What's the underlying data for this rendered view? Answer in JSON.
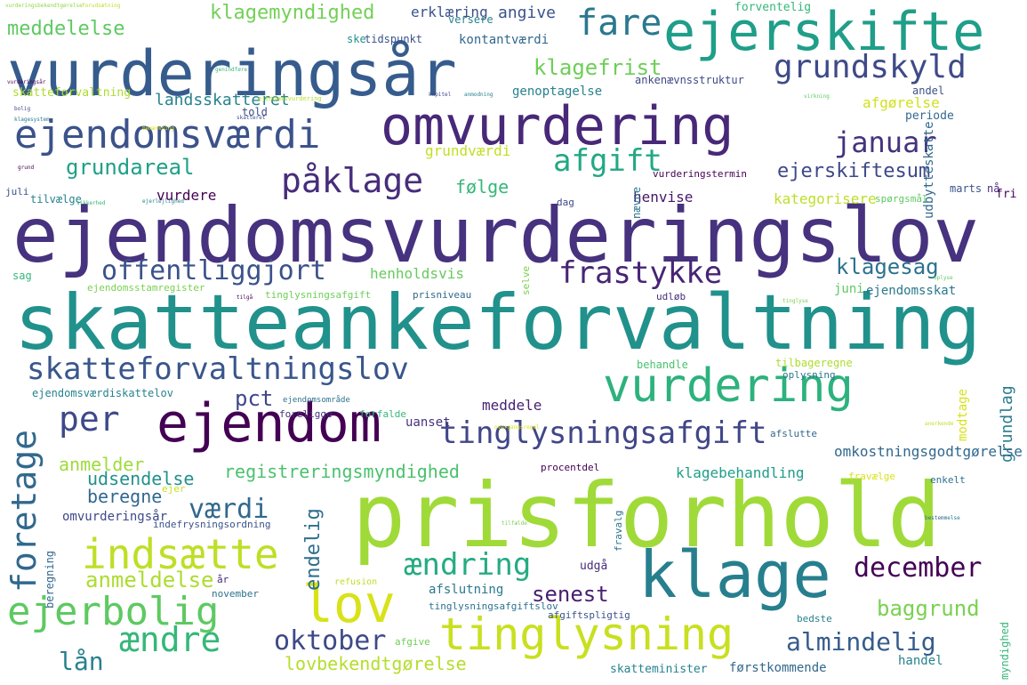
{
  "colors": {
    "background": "#ffffff",
    "palette": [
      "#440154",
      "#482878",
      "#3e4989",
      "#31688e",
      "#26828e",
      "#1f9e89",
      "#35b779",
      "#6ece58",
      "#b5de2b",
      "#fde725"
    ]
  },
  "words": [
    {
      "text": "ejendomsvurderingslov",
      "color": "#46327e"
    },
    {
      "text": "skatteankeforvaltning",
      "color": "#21918c"
    },
    {
      "text": "prisforhold",
      "color": "#a0da39"
    },
    {
      "text": "vurderingsår",
      "color": "#365c8d"
    },
    {
      "text": "omvurdering",
      "color": "#482878"
    },
    {
      "text": "ejerskifte",
      "color": "#1f9e89"
    },
    {
      "text": "ejendom",
      "color": "#440154"
    },
    {
      "text": "klage",
      "color": "#277f8e"
    },
    {
      "text": "vurdering",
      "color": "#2db27d"
    },
    {
      "text": "tinglysning",
      "color": "#c8e020"
    },
    {
      "text": "lov",
      "color": "#d8e219"
    },
    {
      "text": "ejendomsværdi",
      "color": "#3b528b"
    },
    {
      "text": "skatteforvaltningslov",
      "color": "#39568c"
    },
    {
      "text": "tinglysningsafgift",
      "color": "#404688"
    },
    {
      "text": "indsætte",
      "color": "#bddf26"
    },
    {
      "text": "ejerbolig",
      "color": "#5ec962"
    },
    {
      "text": "fare",
      "color": "#2a788e"
    },
    {
      "text": "grundskyld",
      "color": "#3e4a89"
    },
    {
      "text": "påklage",
      "color": "#472d7b"
    },
    {
      "text": "afgift",
      "color": "#22a884"
    },
    {
      "text": "januar",
      "color": "#46337e"
    },
    {
      "text": "frastykke",
      "color": "#482475"
    },
    {
      "text": "offentliggjort",
      "color": "#3b528b"
    },
    {
      "text": "foretage",
      "color": "#31688e"
    },
    {
      "text": "per",
      "color": "#3e4989"
    },
    {
      "text": "ændring",
      "color": "#25ab82"
    },
    {
      "text": "december",
      "color": "#440154"
    },
    {
      "text": "værdi",
      "color": "#31688e"
    },
    {
      "text": "oktober",
      "color": "#3e4989"
    },
    {
      "text": "almindelig",
      "color": "#365c8d"
    },
    {
      "text": "lån",
      "color": "#26828e"
    },
    {
      "text": "ændre",
      "color": "#35b779"
    },
    {
      "text": "baggrund",
      "color": "#7ad151"
    },
    {
      "text": "senest",
      "color": "#481f70"
    },
    {
      "text": "meddelelse",
      "color": "#5ec962"
    },
    {
      "text": "klagemyndighed",
      "color": "#73d056"
    },
    {
      "text": "klagefrist",
      "color": "#6ece58"
    },
    {
      "text": "grundareal",
      "color": "#1fa088"
    },
    {
      "text": "ejerskiftesum",
      "color": "#3e4989"
    },
    {
      "text": "klagesag",
      "color": "#2c728e"
    },
    {
      "text": "anmeldelse",
      "color": "#addc30"
    },
    {
      "text": "følge",
      "color": "#35b779"
    },
    {
      "text": "landsskatteret",
      "color": "#26828e"
    },
    {
      "text": "pct",
      "color": "#404688"
    },
    {
      "text": "registreringsmyndighed",
      "color": "#4ac16d"
    },
    {
      "text": "lovbekendtgørelse",
      "color": "#b5de2b"
    },
    {
      "text": "endelig",
      "color": "#2e6e8e"
    },
    {
      "text": "grundlag",
      "color": "#287c8e"
    },
    {
      "text": "anmelder",
      "color": "#9fda3a"
    },
    {
      "text": "udsendelse",
      "color": "#21918c"
    },
    {
      "text": "beregne",
      "color": "#31688e"
    },
    {
      "text": "angive",
      "color": "#3b528b"
    },
    {
      "text": "erklæring",
      "color": "#3b528b"
    },
    {
      "text": "kontantværdi",
      "color": "#31688e"
    },
    {
      "text": "genoptagelse",
      "color": "#26828e"
    },
    {
      "text": "afgørelse",
      "color": "#d0e11c"
    },
    {
      "text": "grundværdi",
      "color": "#c2df23"
    },
    {
      "text": "vurdere",
      "color": "#440154"
    },
    {
      "text": "henvise",
      "color": "#481769"
    },
    {
      "text": "kategorisere",
      "color": "#bddf26"
    },
    {
      "text": "henholdsvis",
      "color": "#65cb5e"
    },
    {
      "text": "juni",
      "color": "#5ec962"
    },
    {
      "text": "ejendomsskat",
      "color": "#2a788e"
    },
    {
      "text": "omkostningsgodtgørelse",
      "color": "#31688e"
    },
    {
      "text": "klagebehandling",
      "color": "#1f9e89"
    },
    {
      "text": "meddele",
      "color": "#482173"
    },
    {
      "text": "uanset",
      "color": "#46327e"
    },
    {
      "text": "forventelig",
      "color": "#35b779"
    },
    {
      "text": "versere",
      "color": "#26828e"
    },
    {
      "text": "tidspunkt",
      "color": "#3b528b"
    },
    {
      "text": "ske",
      "color": "#21918c"
    },
    {
      "text": "ankenævnsstruktur",
      "color": "#3e4989"
    },
    {
      "text": "udbytteskatte",
      "color": "#31688e"
    },
    {
      "text": "periode",
      "color": "#31688e"
    },
    {
      "text": "andel",
      "color": "#3b528b"
    },
    {
      "text": "told",
      "color": "#3e4989"
    },
    {
      "text": "skatteforvaltning",
      "color": "#addc30"
    },
    {
      "text": "vurderingstermin",
      "color": "#440154"
    },
    {
      "text": "nævne",
      "color": "#2c728e"
    },
    {
      "text": "marts",
      "color": "#3b528b"
    },
    {
      "text": "nå",
      "color": "#472d7b"
    },
    {
      "text": "fri",
      "color": "#440154"
    },
    {
      "text": "spørgsmål",
      "color": "#5ec962"
    },
    {
      "text": "dag",
      "color": "#3e4989"
    },
    {
      "text": "tilvælge",
      "color": "#26828e"
    },
    {
      "text": "juli",
      "color": "#3b528b"
    },
    {
      "text": "sag",
      "color": "#35b779"
    },
    {
      "text": "ejendomsstamregister",
      "color": "#7ad151"
    },
    {
      "text": "tinglysningsafgift",
      "color": "#6ece58"
    },
    {
      "text": "prisniveau",
      "color": "#31688e"
    },
    {
      "text": "udløb",
      "color": "#472d7b"
    },
    {
      "text": "selve",
      "color": "#7ad151"
    },
    {
      "text": "behandle",
      "color": "#4ac16d"
    },
    {
      "text": "tilbageregne",
      "color": "#addc30"
    },
    {
      "text": "oplysning",
      "color": "#2a788e"
    },
    {
      "text": "ejendomsværdiskattelov",
      "color": "#26828e"
    },
    {
      "text": "ejendomsområde",
      "color": "#2c728e"
    },
    {
      "text": "foreligge",
      "color": "#46327e"
    },
    {
      "text": "forfalde",
      "color": "#35b779"
    },
    {
      "text": "modtage",
      "color": "#d8e219"
    },
    {
      "text": "afslutte",
      "color": "#31688e"
    },
    {
      "text": "procentdel",
      "color": "#440154"
    },
    {
      "text": "ejer",
      "color": "#c8e020"
    },
    {
      "text": "fravælge",
      "color": "#d8e219"
    },
    {
      "text": "enkelt",
      "color": "#2c728e"
    },
    {
      "text": "omvurderingsår",
      "color": "#3e4989"
    },
    {
      "text": "indefrysningsordning",
      "color": "#3b528b"
    },
    {
      "text": "fravalg",
      "color": "#2c728e"
    },
    {
      "text": "beregning",
      "color": "#31688e"
    },
    {
      "text": "år",
      "color": "#482878"
    },
    {
      "text": "refusion",
      "color": "#bddf26"
    },
    {
      "text": "udgå",
      "color": "#472d7b"
    },
    {
      "text": "afslutning",
      "color": "#2a788e"
    },
    {
      "text": "tinglysningsafgiftslov",
      "color": "#2c728e"
    },
    {
      "text": "november",
      "color": "#2c728e"
    },
    {
      "text": "afgiftspligtig",
      "color": "#3b528b"
    },
    {
      "text": "bedste",
      "color": "#26828e"
    },
    {
      "text": "afgive",
      "color": "#6ece58"
    },
    {
      "text": "handel",
      "color": "#26828e"
    },
    {
      "text": "førstkommende",
      "color": "#31688e"
    },
    {
      "text": "skatteminister",
      "color": "#26828e"
    },
    {
      "text": "myndighed",
      "color": "#35b779"
    },
    {
      "text": "vurderingsbekendtgørelse",
      "color": "#8fd744"
    },
    {
      "text": "tinglyse",
      "color": "#7ad151"
    },
    {
      "text": "ejendomsvurdering",
      "color": "#b5de2b"
    },
    {
      "text": "vurderingsår",
      "color": "#440154"
    },
    {
      "text": "klagesystem",
      "color": "#2a788e"
    },
    {
      "text": "bemærkning",
      "color": "#d8e219"
    },
    {
      "text": "forudsætning",
      "color": "#bddf26"
    },
    {
      "text": "genindføre",
      "color": "#35b779"
    },
    {
      "text": "grund",
      "color": "#440154"
    },
    {
      "text": "bolig",
      "color": "#3e4989"
    },
    {
      "text": "ejerlejlighed",
      "color": "#26828e"
    },
    {
      "text": "sikkerhed",
      "color": "#35b779"
    },
    {
      "text": "skatteret",
      "color": "#3b528b"
    },
    {
      "text": "oplyse",
      "color": "#5ec962"
    },
    {
      "text": "tilgå",
      "color": "#440154"
    },
    {
      "text": "kapitel",
      "color": "#3e4989"
    },
    {
      "text": "anmodning",
      "color": "#26828e"
    },
    {
      "text": "overgangsregel",
      "color": "#d8e219"
    },
    {
      "text": "anerkende",
      "color": "#bddf26"
    },
    {
      "text": "virkning",
      "color": "#5ec962"
    },
    {
      "text": "bestemmelse",
      "color": "#2c728e"
    },
    {
      "text": "tilfælde",
      "color": "#7ad151"
    }
  ]
}
